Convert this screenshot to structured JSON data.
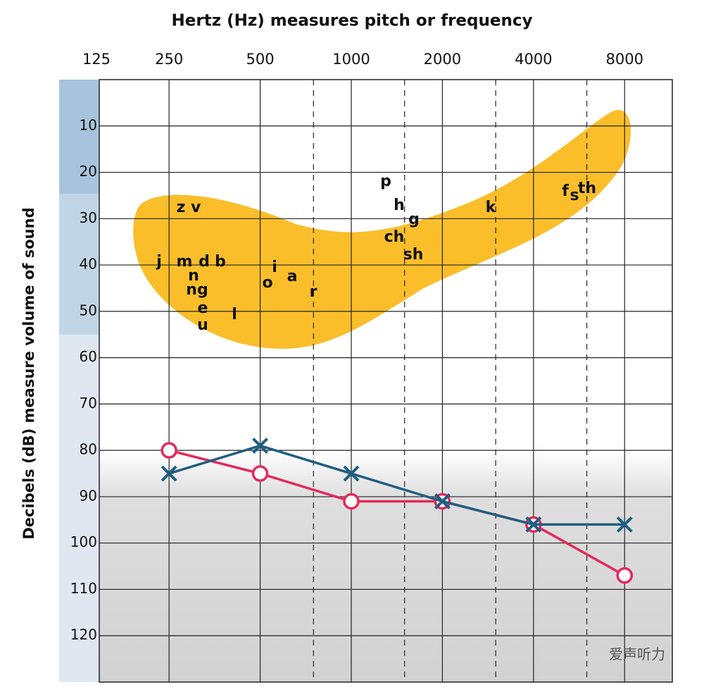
{
  "chart_data": {
    "type": "line",
    "title": "Hertz (Hz) measures pitch or frequency",
    "y_label": "Decibels (dB) measure volume of sound",
    "x": [
      250,
      500,
      1000,
      2000,
      4000,
      8000
    ],
    "xscale": "log",
    "xlim": [
      147,
      11500
    ],
    "xticks": [
      125,
      250,
      500,
      1000,
      2000,
      4000,
      8000
    ],
    "minor_xticks": [
      750,
      1500,
      3000,
      6000
    ],
    "ylim": [
      0,
      130
    ],
    "y_inverted": true,
    "yticks": [
      10,
      20,
      30,
      40,
      50,
      60,
      70,
      80,
      90,
      100,
      110,
      120
    ],
    "grid": true,
    "series": [
      {
        "color": "#e5285a",
        "marker": "circle",
        "values": [
          80,
          85,
          91,
          91,
          96,
          107
        ]
      },
      {
        "color": "#1f5e82",
        "marker": "x",
        "values": [
          85,
          79,
          85,
          91,
          96,
          96
        ]
      }
    ],
    "annotations": [
      "z v",
      "j",
      "m",
      "d",
      "b",
      "n",
      "ng",
      "e",
      "u",
      "l",
      "o",
      "i",
      "a",
      "r",
      "p",
      "h",
      "g",
      "ch",
      "sh",
      "k",
      "f",
      "s",
      "th"
    ],
    "watermark": "爱声听力"
  }
}
